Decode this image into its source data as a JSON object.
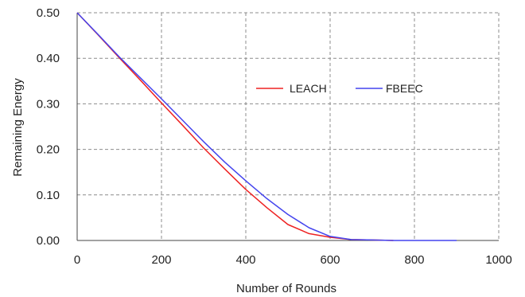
{
  "chart_data": {
    "type": "line",
    "xlabel": "Number of Rounds",
    "ylabel": "Remaining  Energy",
    "xlim": [
      0,
      1000
    ],
    "ylim": [
      0,
      0.5
    ],
    "x_ticks": [
      "0",
      "200",
      "400",
      "600",
      "800",
      "1000"
    ],
    "y_ticks": [
      "0.00",
      "0.10",
      "0.20",
      "0.30",
      "0.40",
      "0.50"
    ],
    "grid": true,
    "legend_position": "center-right",
    "series": [
      {
        "name": "LEACH",
        "color": "#ee2222",
        "x": [
          0,
          50,
          100,
          150,
          200,
          250,
          300,
          350,
          400,
          450,
          500,
          550,
          600,
          650,
          700,
          750
        ],
        "y": [
          0.5,
          0.451,
          0.401,
          0.352,
          0.302,
          0.253,
          0.203,
          0.157,
          0.112,
          0.072,
          0.035,
          0.015,
          0.007,
          0.002,
          0.001,
          0.0
        ]
      },
      {
        "name": "FBEEC",
        "color": "#4444ee",
        "x": [
          0,
          50,
          100,
          150,
          200,
          250,
          300,
          350,
          400,
          450,
          500,
          550,
          600,
          650,
          700,
          750,
          800,
          850,
          900
        ],
        "y": [
          0.5,
          0.452,
          0.403,
          0.357,
          0.311,
          0.264,
          0.217,
          0.172,
          0.131,
          0.092,
          0.057,
          0.028,
          0.009,
          0.002,
          0.001,
          0.0,
          0.0,
          0.0,
          0.0
        ]
      }
    ]
  }
}
